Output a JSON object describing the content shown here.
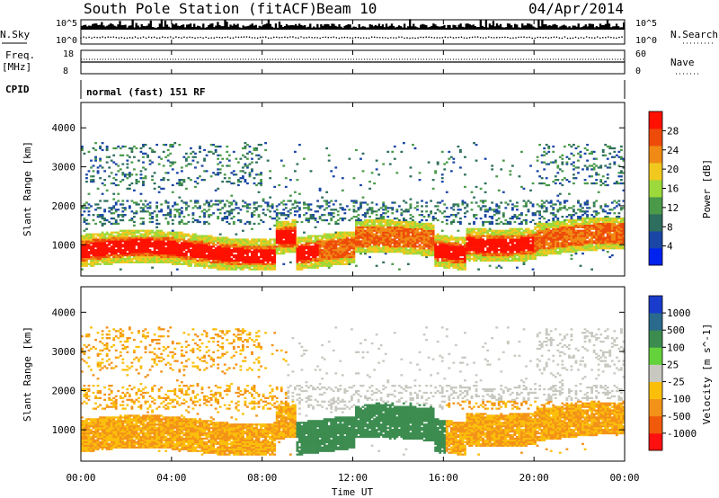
{
  "header": {
    "station": "South Pole Station (fitACF)",
    "beam": "Beam 10",
    "date": "04/Apr/2014"
  },
  "panels": {
    "noise": {
      "left_label": "N.Sky",
      "right_label": "N.Search",
      "left_ticks": [
        "10^5",
        "10^0"
      ],
      "right_ticks": [
        "10^5",
        "10^0"
      ]
    },
    "freq": {
      "left_label_1": "Freq.",
      "left_label_2": "[MHz]",
      "right_label": "Nave",
      "left_ticks": [
        "18",
        "8"
      ],
      "right_ticks": [
        "60",
        "0"
      ]
    },
    "cpid": {
      "left_label": "CPID",
      "value": "normal (fast) 151 RF"
    }
  },
  "colors": {
    "power_scale": [
      "#0022ee",
      "#1a46a6",
      "#2e6e5e",
      "#4a9a4a",
      "#9cd93a",
      "#f0c81e",
      "#f08a14",
      "#ee4a0a",
      "#ff1000"
    ],
    "velocity_scale": [
      "#ff1010",
      "#f05a0a",
      "#f39218",
      "#fbbf0a",
      "#c8c8c0",
      "#64d23a",
      "#3c8c50",
      "#2a6a8c",
      "#1a3ccc"
    ]
  },
  "chart_data": [
    {
      "type": "heatmap",
      "name": "power",
      "xlabel": "",
      "ylabel": "Slant Range [km]",
      "x_ticks": [
        "00:00",
        "04:00",
        "08:00",
        "12:00",
        "16:00",
        "20:00",
        "00:00"
      ],
      "y_ticks": [
        "1000",
        "2000",
        "3000",
        "4000"
      ],
      "ylim": [
        200,
        4650
      ],
      "colorbar": {
        "label": "Power [dB]",
        "ticks": [
          "4",
          "8",
          "12",
          "16",
          "20",
          "24",
          "28"
        ]
      }
    },
    {
      "type": "heatmap",
      "name": "velocity",
      "xlabel": "Time UT",
      "ylabel": "Slant Range [km]",
      "x_ticks": [
        "00:00",
        "04:00",
        "08:00",
        "12:00",
        "16:00",
        "20:00",
        "00:00"
      ],
      "y_ticks": [
        "1000",
        "2000",
        "3000",
        "4000"
      ],
      "ylim": [
        200,
        4650
      ],
      "colorbar": {
        "label": "Velocity [m s^-1]",
        "ticks": [
          "1000",
          "500",
          "100",
          "25",
          "-25",
          "-100",
          "-500",
          "-1000"
        ]
      }
    }
  ]
}
